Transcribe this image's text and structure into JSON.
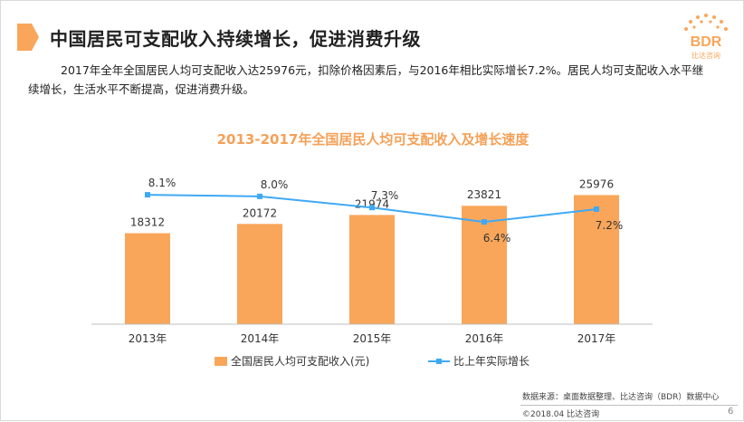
{
  "header": {
    "title": "中国居民可支配收入持续增长，促进消费升级",
    "logo_text": "BDR",
    "logo_subtext": "比达咨询"
  },
  "summary": "2017年全年全国居民人均可支配收入达25976元，扣除价格因素后，与2016年相比实际增长7.2%。居民人均可支配收入水平继续增长，生活水平不断提高，促进消费升级。",
  "chart_data": {
    "type": "bar",
    "title": "2013-2017年全国居民人均可支配收入及增长速度",
    "categories": [
      "2013年",
      "2014年",
      "2015年",
      "2016年",
      "2017年"
    ],
    "series": [
      {
        "name": "全国居民人均可支配收入(元)",
        "type": "bar",
        "values": [
          18312,
          20172,
          21974,
          23821,
          25976
        ],
        "labels": [
          "18312",
          "20172",
          "21974",
          "23821",
          "25976"
        ],
        "color": "#f9a65a"
      },
      {
        "name": "比上年实际增长",
        "type": "line",
        "values": [
          8.1,
          8.0,
          7.3,
          6.4,
          7.2
        ],
        "labels": [
          "8.1%",
          "8.0%",
          "7.3%",
          "6.4%",
          "7.2%"
        ],
        "color": "#3fa9f5"
      }
    ],
    "ylim_bar": [
      0,
      45000
    ],
    "ylim_line": [
      0,
      14
    ],
    "legend_position": "bottom",
    "grid": false
  },
  "footer": {
    "source": "数据来源：桌面数据整理、比达咨询（BDR）数据中心",
    "copyright": "©2018.04  比达咨询",
    "page": "6"
  },
  "colors": {
    "accent": "#f9a65a",
    "title_orange": "#f5a158",
    "line": "#3fa9f5"
  }
}
